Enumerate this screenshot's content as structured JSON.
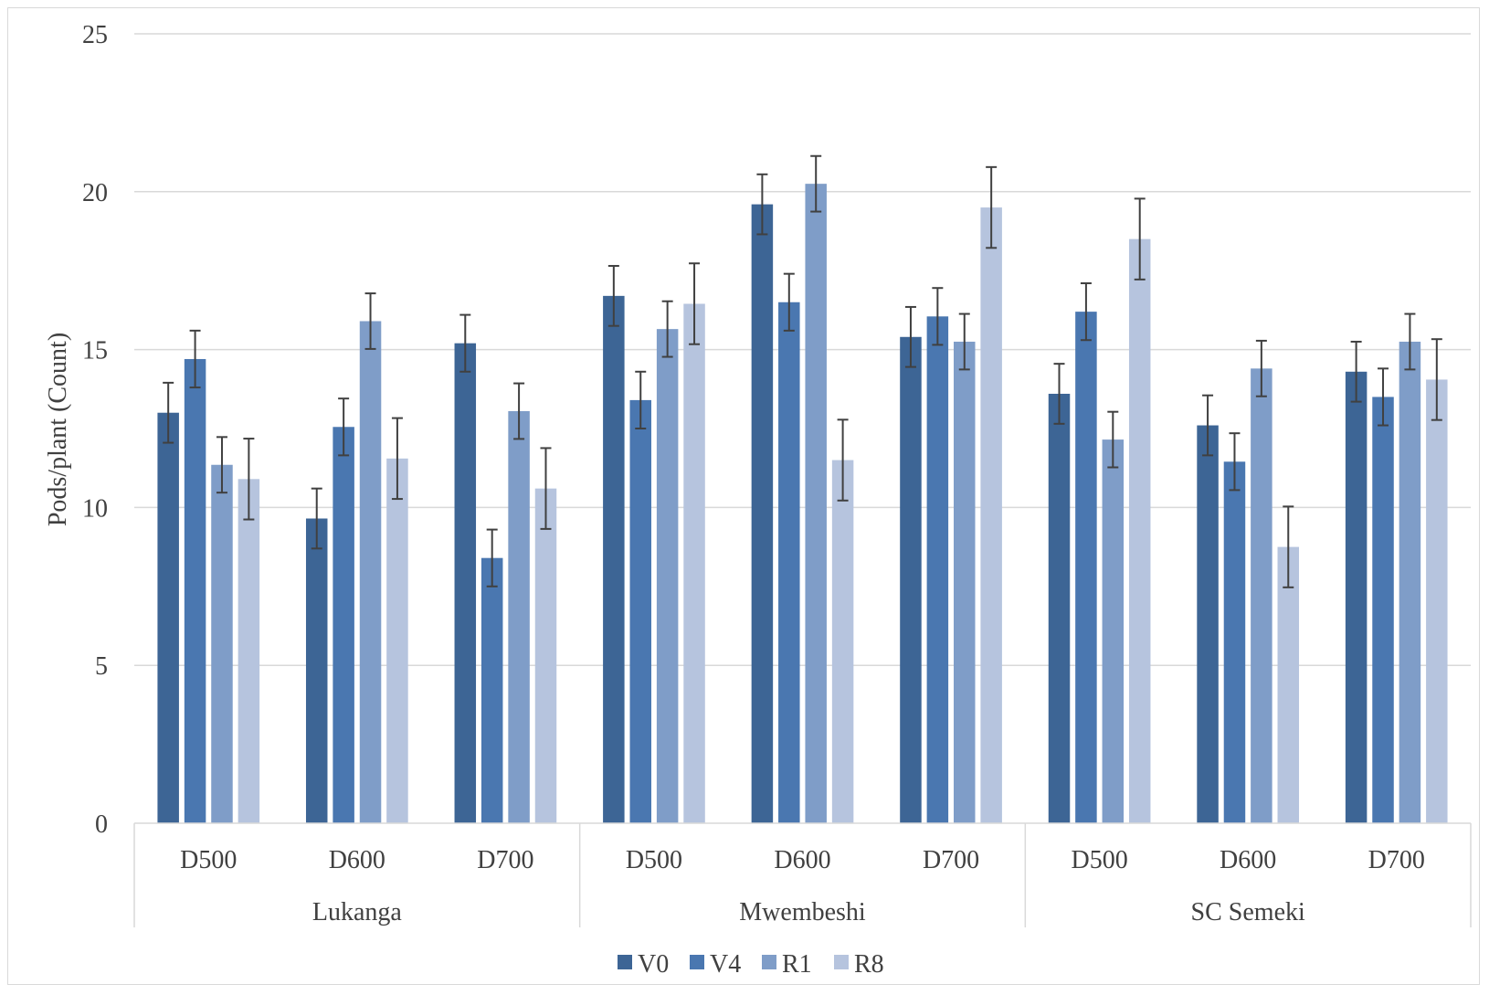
{
  "chart_data": {
    "type": "bar",
    "title": "",
    "ylabel": "Pods/plant (Count)",
    "xlabel": "",
    "ylim": [
      0,
      25
    ],
    "yticks": [
      0,
      5,
      10,
      15,
      20,
      25
    ],
    "grid": true,
    "legend_position": "bottom",
    "groups": [
      {
        "name": "Lukanga",
        "categories": [
          "D500",
          "D600",
          "D700"
        ]
      },
      {
        "name": "Mwembeshi",
        "categories": [
          "D500",
          "D600",
          "D700"
        ]
      },
      {
        "name": "SC Semeki",
        "categories": [
          "D500",
          "D600",
          "D700"
        ]
      }
    ],
    "series": [
      {
        "name": "V0",
        "color": "#3d6595",
        "values": [
          13.0,
          9.65,
          15.2,
          16.7,
          19.6,
          15.4,
          13.6,
          12.6,
          14.3
        ],
        "errors": [
          0.95,
          0.95,
          0.9,
          0.95,
          0.95,
          0.95,
          0.95,
          0.95,
          0.95
        ]
      },
      {
        "name": "V4",
        "color": "#4a77b0",
        "values": [
          14.7,
          12.55,
          8.4,
          13.4,
          16.5,
          16.05,
          16.2,
          11.45,
          13.5
        ],
        "errors": [
          0.9,
          0.9,
          0.9,
          0.9,
          0.9,
          0.9,
          0.9,
          0.9,
          0.9
        ]
      },
      {
        "name": "R1",
        "color": "#7f9dc8",
        "values": [
          11.35,
          15.9,
          13.05,
          15.65,
          20.25,
          15.25,
          12.15,
          14.4,
          15.25
        ],
        "errors": [
          0.88,
          0.88,
          0.88,
          0.88,
          0.88,
          0.88,
          0.88,
          0.88,
          0.88
        ]
      },
      {
        "name": "R8",
        "color": "#b6c4de",
        "values": [
          10.9,
          11.55,
          10.6,
          16.45,
          11.5,
          19.5,
          18.5,
          8.75,
          14.05
        ],
        "errors": [
          1.28,
          1.28,
          1.28,
          1.28,
          1.28,
          1.28,
          1.28,
          1.28,
          1.28
        ]
      }
    ]
  }
}
